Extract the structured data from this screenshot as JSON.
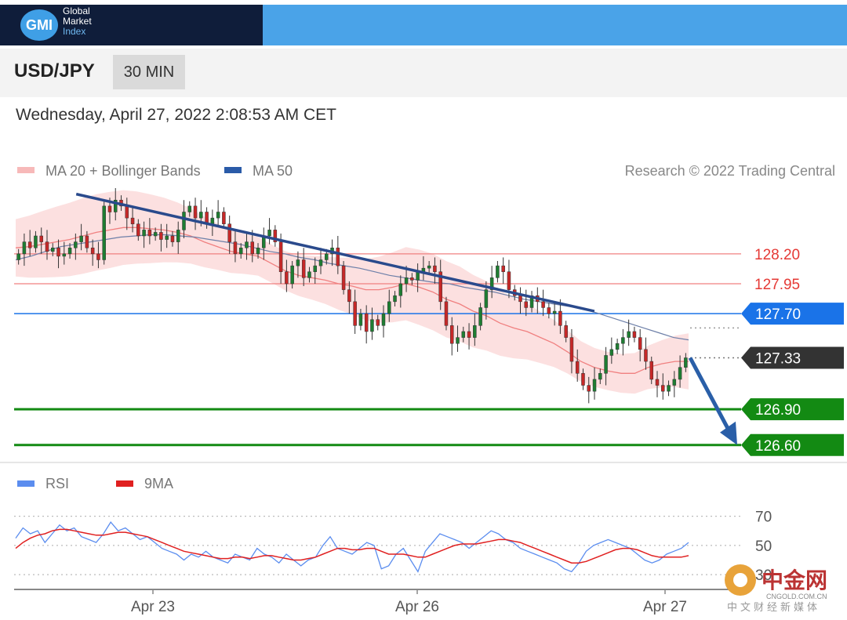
{
  "header": {
    "logo_mark": "GMI",
    "logo_line1": "Global",
    "logo_line2": "Market",
    "logo_line3": "Index",
    "dark_color": "#0f1d3a",
    "blue_color": "#4aa3e8"
  },
  "instrument": {
    "pair": "USD/JPY",
    "timeframe": "30 MIN"
  },
  "datetime": "Wednesday, April 27, 2022 2:08:53 AM CET",
  "watermark": {
    "name": "中金网",
    "url": "CNGOLD.COM.CN",
    "subtitle": "中文财经新媒体"
  },
  "chart_data": [
    {
      "type": "candlestick",
      "legend": [
        {
          "name": "MA 20 + Bollinger Bands",
          "color": "#f08080"
        },
        {
          "name": "MA 50",
          "color": "#2a5ba8"
        }
      ],
      "credit": "Research © 2022 Trading Central",
      "ylim": [
        126.52,
        128.75
      ],
      "xlabels": [
        "Apr 23",
        "Apr 26",
        "Apr 27"
      ],
      "levels": [
        {
          "value": 128.2,
          "label": "128.20",
          "kind": "resistance",
          "color": "#f08080",
          "tag": false
        },
        {
          "value": 127.95,
          "label": "127.95",
          "kind": "resistance",
          "color": "#f08080",
          "tag": false
        },
        {
          "value": 127.7,
          "label": "127.70",
          "kind": "pivot",
          "color": "#1a73e8",
          "tag": true
        },
        {
          "value": 127.33,
          "label": "127.33",
          "kind": "last",
          "color": "#333333",
          "tag": true
        },
        {
          "value": 126.9,
          "label": "126.90",
          "kind": "support",
          "color": "#138a13",
          "tag": true
        },
        {
          "value": 126.6,
          "label": "126.60",
          "kind": "support",
          "color": "#138a13",
          "tag": true
        }
      ],
      "trendline": [
        [
          0.09,
          128.7
        ],
        [
          0.86,
          127.72
        ]
      ],
      "forecast_arrow": [
        [
          0.0,
          127.33
        ],
        [
          1.0,
          126.6
        ]
      ],
      "close": [
        128.2,
        128.3,
        128.25,
        128.35,
        128.3,
        128.22,
        128.25,
        128.18,
        128.2,
        128.25,
        128.3,
        128.35,
        128.25,
        128.2,
        128.15,
        128.6,
        128.55,
        128.65,
        128.6,
        128.5,
        128.45,
        128.35,
        128.4,
        128.35,
        128.38,
        128.32,
        128.35,
        128.3,
        128.4,
        128.55,
        128.6,
        128.5,
        128.55,
        128.45,
        128.5,
        128.55,
        128.45,
        128.3,
        128.2,
        128.25,
        128.3,
        128.2,
        128.25,
        128.35,
        128.4,
        128.3,
        128.05,
        127.95,
        128.1,
        128.15,
        128.0,
        128.05,
        128.1,
        128.15,
        128.2,
        128.25,
        128.1,
        127.9,
        127.8,
        127.6,
        127.7,
        127.55,
        127.65,
        127.6,
        127.7,
        127.8,
        127.85,
        127.95,
        128.0,
        127.98,
        128.05,
        128.08,
        128.1,
        128.05,
        127.8,
        127.6,
        127.45,
        127.5,
        127.55,
        127.5,
        127.6,
        127.75,
        127.9,
        128.0,
        128.1,
        128.05,
        127.9,
        127.85,
        127.8,
        127.75,
        127.85,
        127.8,
        127.75,
        127.7,
        127.72,
        127.6,
        127.5,
        127.3,
        127.2,
        127.1,
        127.05,
        127.15,
        127.2,
        127.35,
        127.4,
        127.45,
        127.5,
        127.55,
        127.5,
        127.4,
        127.3,
        127.15,
        127.1,
        127.05,
        127.1,
        127.15,
        127.25,
        127.33
      ],
      "ma20": [
        128.25,
        128.26,
        128.28,
        128.3,
        128.32,
        128.35,
        128.38,
        128.4,
        128.42,
        128.42,
        128.41,
        128.4,
        128.38,
        128.35,
        128.3,
        128.26,
        128.22,
        128.2,
        128.18,
        128.12,
        128.06,
        128.02,
        128.0,
        127.98,
        127.95,
        127.93,
        127.9,
        127.9,
        127.92,
        127.95,
        127.92,
        127.88,
        127.82,
        127.78,
        127.72,
        127.68,
        127.62,
        127.58,
        127.55,
        127.5,
        127.45,
        127.38,
        127.3,
        127.25,
        127.22,
        127.2,
        127.2,
        127.25,
        127.28,
        127.3,
        127.3
      ],
      "ma50": [
        128.15,
        128.18,
        128.22,
        128.26,
        128.28,
        128.3,
        128.32,
        128.34,
        128.35,
        128.36,
        128.36,
        128.35,
        128.34,
        128.32,
        128.3,
        128.28,
        128.25,
        128.22,
        128.2,
        128.17,
        128.15,
        128.12,
        128.1,
        128.08,
        128.05,
        128.02,
        128.0,
        127.98,
        127.96,
        127.95,
        127.92,
        127.9,
        127.88,
        127.85,
        127.82,
        127.8,
        127.78,
        127.76,
        127.74,
        127.7,
        127.66,
        127.62,
        127.58,
        127.54,
        127.5,
        127.48
      ]
    },
    {
      "type": "line",
      "legend": [
        {
          "name": "RSI",
          "color": "#5b8def"
        },
        {
          "name": "9MA",
          "color": "#e02020"
        }
      ],
      "ylim": [
        22,
        80
      ],
      "yticks": [
        70,
        50,
        30
      ],
      "rsi": [
        55,
        62,
        58,
        60,
        52,
        58,
        64,
        60,
        62,
        56,
        54,
        52,
        58,
        66,
        60,
        62,
        58,
        54,
        56,
        52,
        48,
        46,
        44,
        40,
        44,
        42,
        46,
        42,
        40,
        38,
        44,
        42,
        40,
        48,
        44,
        42,
        38,
        44,
        40,
        36,
        40,
        42,
        50,
        56,
        48,
        46,
        44,
        48,
        52,
        50,
        34,
        36,
        44,
        48,
        40,
        32,
        46,
        52,
        58,
        56,
        54,
        52,
        48,
        52,
        56,
        60,
        58,
        54,
        52,
        48,
        46,
        44,
        42,
        40,
        38,
        34,
        32,
        38,
        46,
        50,
        52,
        54,
        52,
        50,
        48,
        44,
        40,
        38,
        40,
        44,
        46,
        48,
        52
      ],
      "ma9": [
        48,
        52,
        55,
        57,
        58,
        60,
        61,
        61,
        60,
        59,
        58,
        57,
        57,
        58,
        59,
        59,
        58,
        57,
        56,
        54,
        52,
        50,
        48,
        46,
        45,
        44,
        43,
        42,
        41,
        41,
        42,
        42,
        41,
        42,
        43,
        43,
        42,
        41,
        40,
        40,
        41,
        42,
        44,
        46,
        48,
        48,
        47,
        47,
        48,
        48,
        46,
        44,
        44,
        44,
        43,
        42,
        42,
        44,
        46,
        48,
        50,
        51,
        51,
        51,
        52,
        53,
        54,
        54,
        53,
        52,
        50,
        48,
        46,
        44,
        42,
        40,
        38,
        38,
        39,
        41,
        43,
        45,
        47,
        48,
        48,
        47,
        45,
        43,
        42,
        42,
        42,
        42,
        43
      ]
    }
  ]
}
